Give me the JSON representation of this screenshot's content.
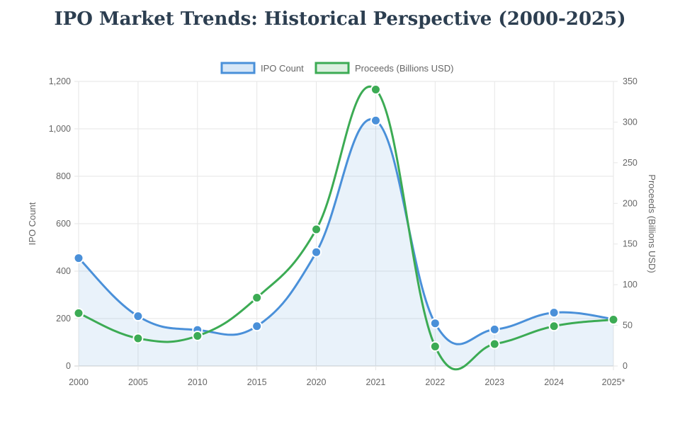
{
  "page": {
    "title": "IPO Market Trends: Historical Perspective (2000-2025)"
  },
  "chart_data": {
    "type": "line",
    "categories": [
      "2000",
      "2005",
      "2010",
      "2015",
      "2020",
      "2021",
      "2022",
      "2023",
      "2024",
      "2025*"
    ],
    "series": [
      {
        "name": "IPO Count",
        "axis": "left",
        "values": [
          455,
          210,
          152,
          168,
          480,
          1035,
          180,
          154,
          225,
          198
        ],
        "color": "#4a90d9",
        "fill": "rgba(74,144,217,0.12)",
        "filled": true
      },
      {
        "name": "Proceeds (Billions USD)",
        "axis": "right",
        "values": [
          65,
          34,
          37,
          84,
          168,
          340,
          24,
          27,
          49,
          57
        ],
        "color": "#3cab54",
        "filled": false
      }
    ],
    "y_left": {
      "label": "IPO Count",
      "min": 0,
      "max": 1200,
      "ticks": [
        "0",
        "200",
        "400",
        "600",
        "800",
        "1,000",
        "1,200"
      ]
    },
    "y_right": {
      "label": "Proceeds (Billions USD)",
      "min": 0,
      "max": 350,
      "ticks": [
        "0",
        "50",
        "100",
        "150",
        "200",
        "250",
        "300",
        "350"
      ]
    },
    "grid": true,
    "legend_position": "top"
  }
}
